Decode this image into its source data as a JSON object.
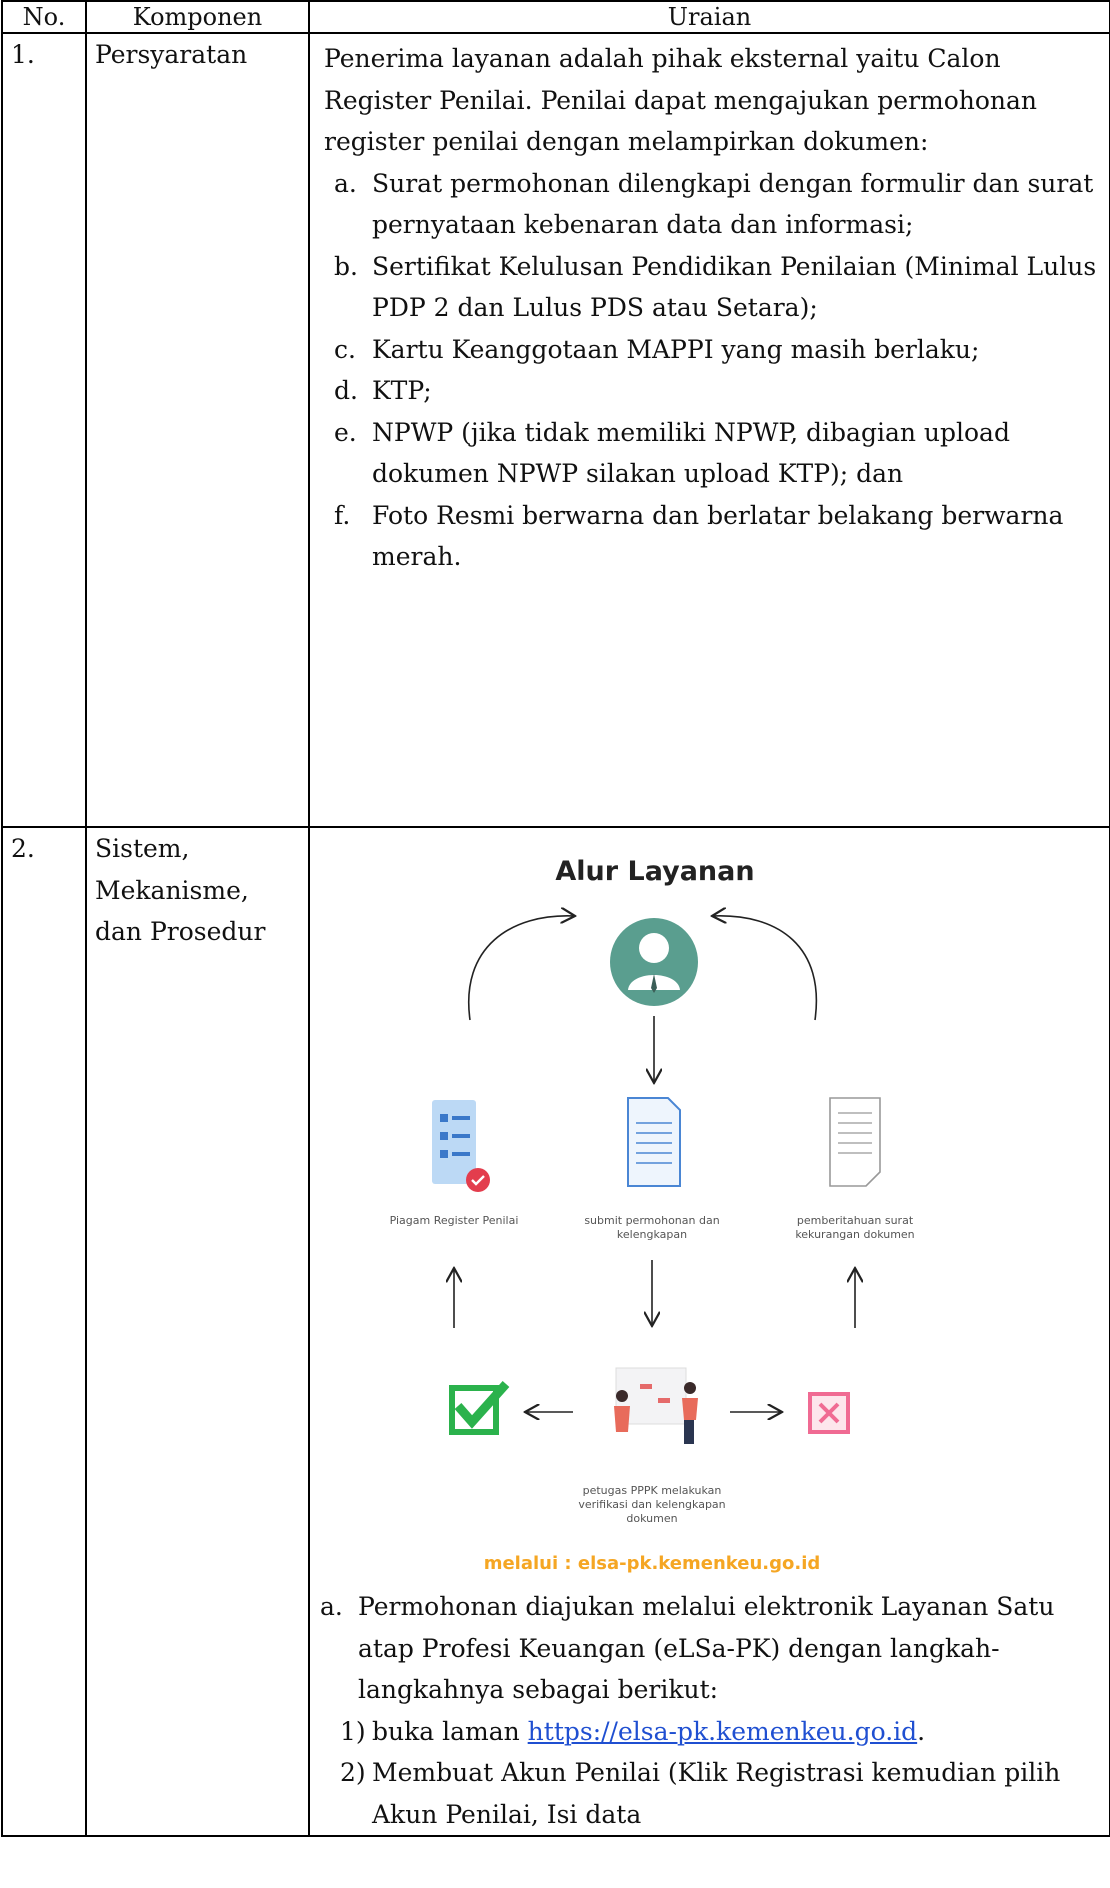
{
  "table": {
    "header": [
      "No.",
      "Komponen",
      "Uraian"
    ],
    "rows": [
      {
        "no": "1.",
        "component": "Persyaratan",
        "description": {
          "intro": "Penerima layanan adalah pihak eksternal yaitu Calon Register Penilai. Penilai dapat mengajukan permohonan register penilai dengan melampirkan dokumen:",
          "items": [
            {
              "marker": "a.",
              "text": "Surat permohonan dilengkapi dengan formulir dan surat pernyataan kebenaran data dan informasi;"
            },
            {
              "marker": "b.",
              "text": "Sertifikat Kelulusan Pendidikan Penilaian (Minimal Lulus PDP 2 dan Lulus PDS atau Setara);"
            },
            {
              "marker": "c.",
              "text": "Kartu Keanggotaan MAPPI yang masih berlaku;"
            },
            {
              "marker": "d.",
              "text": "KTP;"
            },
            {
              "marker": "e.",
              "text": "NPWP (jika tidak memiliki NPWP, dibagian upload dokumen NPWP silakan upload KTP); dan"
            },
            {
              "marker": "f.",
              "text": "Foto Resmi berwarna dan berlatar belakang berwarna merah."
            }
          ]
        }
      },
      {
        "no": "2.",
        "component": "Sistem, Mekanisme, dan Prosedur",
        "diagram": {
          "title": "Alur Layanan",
          "labels": [
            "Piagam Register Penilai",
            "submit permohonan dan kelengkapan",
            "pemberitahuan surat kekurangan dokumen",
            "petugas PPPK melakukan verifikasi dan kelengkapan dokumen"
          ],
          "footer": "melalui : elsa-pk.kemenkeu.go.id"
        },
        "description": {
          "items": [
            {
              "marker": "a.",
              "text": "Permohonan diajukan melalui elektronik Layanan Satu atap Profesi Keuangan (eLSa-PK) dengan langkah-langkahnya sebagai berikut:",
              "subitems": [
                {
                  "marker": "1)",
                  "text": "buka laman",
                  "link": "https://elsa-pk.kemenkeu.go.id",
                  "after": "."
                },
                {
                  "marker": "2)",
                  "text": "Membuat Akun Penilai (Klik Registrasi kemudian pilih Akun Penilai, Isi data"
                }
              ]
            }
          ]
        }
      }
    ]
  }
}
